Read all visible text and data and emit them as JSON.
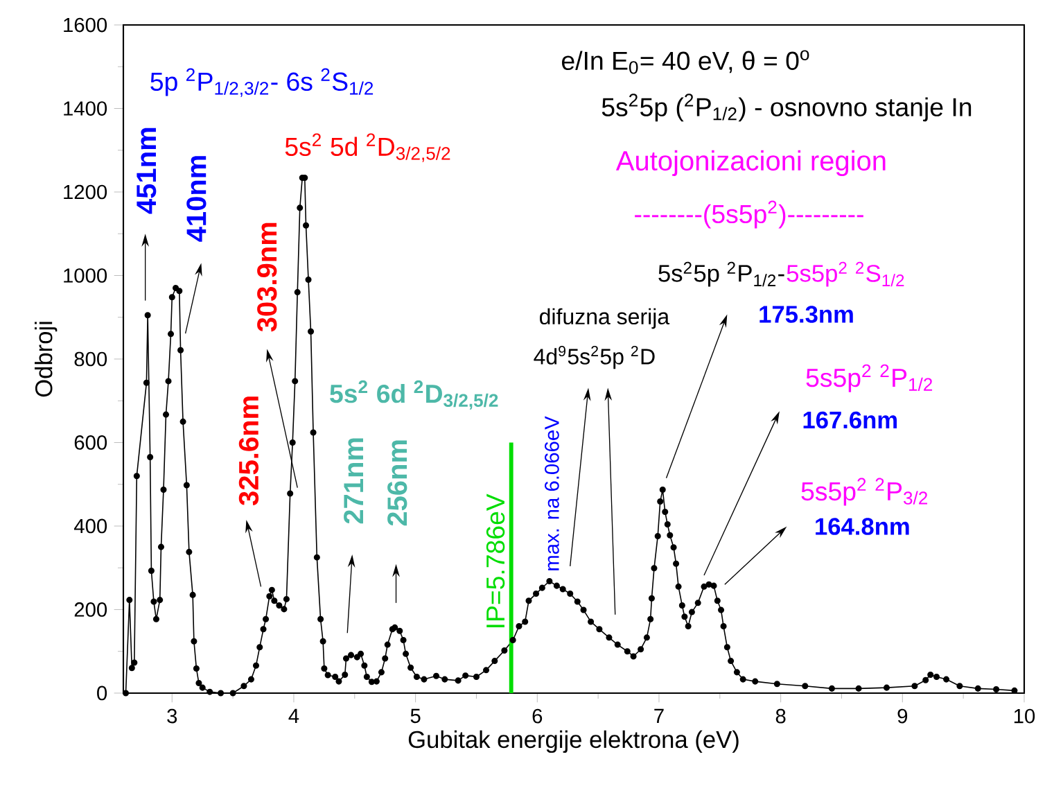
{
  "chart_data": {
    "type": "line",
    "xlabel": "Gubitak energije elektrona (eV)",
    "ylabel": "Odbroji",
    "x": [
      2.62,
      2.65,
      2.67,
      2.69,
      2.71,
      2.79,
      2.8,
      2.82,
      2.83,
      2.85,
      2.87,
      2.9,
      2.91,
      2.93,
      2.95,
      2.97,
      2.99,
      3.0,
      3.03,
      3.06,
      3.07,
      3.09,
      3.12,
      3.14,
      3.17,
      3.18,
      3.2,
      3.22,
      3.25,
      3.31,
      3.4,
      3.5,
      3.59,
      3.65,
      3.69,
      3.72,
      3.75,
      3.77,
      3.8,
      3.82,
      3.84,
      3.88,
      3.92,
      3.94,
      3.97,
      3.99,
      4.01,
      4.03,
      4.05,
      4.07,
      4.09,
      4.1,
      4.12,
      4.14,
      4.16,
      4.19,
      4.22,
      4.24,
      4.25,
      4.28,
      4.34,
      4.37,
      4.42,
      4.43,
      4.47,
      4.52,
      4.55,
      4.58,
      4.6,
      4.64,
      4.68,
      4.72,
      4.75,
      4.77,
      4.81,
      4.83,
      4.87,
      4.9,
      4.92,
      4.96,
      5.01,
      5.07,
      5.17,
      5.24,
      5.35,
      5.41,
      5.5,
      5.58,
      5.65,
      5.73,
      5.8,
      5.85,
      5.9,
      5.93,
      5.99,
      6.04,
      6.1,
      6.16,
      6.21,
      6.27,
      6.33,
      6.38,
      6.44,
      6.51,
      6.59,
      6.66,
      6.74,
      6.79,
      6.85,
      6.9,
      6.93,
      6.94,
      6.96,
      6.99,
      7.01,
      7.03,
      7.05,
      7.07,
      7.09,
      7.12,
      7.14,
      7.16,
      7.19,
      7.21,
      7.24,
      7.27,
      7.32,
      7.37,
      7.41,
      7.45,
      7.48,
      7.51,
      7.53,
      7.56,
      7.59,
      7.64,
      7.69,
      7.79,
      7.97,
      8.2,
      8.42,
      8.64,
      8.87,
      9.1,
      9.19,
      9.23,
      9.28,
      9.36,
      9.47,
      9.62,
      9.77,
      9.92
    ],
    "series": [
      {
        "color": "#000000",
        "values": [
          0,
          223,
          60,
          73,
          520,
          743,
          905,
          565,
          293,
          219,
          177,
          223,
          350,
          487,
          667,
          747,
          860,
          948,
          970,
          963,
          821,
          650,
          498,
          338,
          235,
          124,
          59,
          24,
          13,
          3,
          0,
          0,
          17,
          33,
          66,
          110,
          153,
          177,
          232,
          247,
          221,
          210,
          201,
          225,
          478,
          600,
          747,
          960,
          1162,
          1234,
          1234,
          1120,
          990,
          866,
          624,
          325,
          177,
          124,
          59,
          43,
          39,
          28,
          44,
          83,
          91,
          86,
          94,
          66,
          39,
          27,
          28,
          50,
          83,
          116,
          153,
          157,
          149,
          127,
          94,
          61,
          39,
          33,
          41,
          33,
          30,
          42,
          39,
          55,
          77,
          102,
          127,
          160,
          171,
          221,
          238,
          252,
          268,
          257,
          249,
          238,
          219,
          199,
          171,
          153,
          133,
          116,
          100,
          88,
          105,
          133,
          177,
          227,
          299,
          376,
          459,
          487,
          434,
          404,
          378,
          349,
          310,
          255,
          210,
          183,
          160,
          194,
          216,
          255,
          260,
          257,
          221,
          199,
          160,
          110,
          77,
          50,
          33,
          28,
          22,
          17,
          11,
          11,
          13,
          17,
          31,
          44,
          39,
          33,
          17,
          11,
          9,
          6
        ]
      }
    ],
    "xlim": [
      2.6,
      10
    ],
    "ylim": [
      0,
      1600
    ],
    "xticks": [
      3,
      4,
      5,
      6,
      7,
      8,
      9,
      10
    ],
    "yticks": [
      0,
      200,
      400,
      600,
      800,
      1000,
      1200,
      1400,
      1600
    ],
    "grid": false,
    "marker": "circle",
    "line_style": "solid",
    "ref_lines": [
      {
        "axis": "x",
        "value": 5.786,
        "label": "IP=5.786eV",
        "color": "#00dd00"
      }
    ],
    "annotations": [
      "e/In E$_{0}$= 40 eV, θ = 0$^{o}$",
      "5s$^{2}$5p ($^{2}$P$_{1/2}$) - osnovno stanje In",
      "Autojonizacioni region",
      "--------(5s5p$^{2}$)---------",
      "5p $^{2}$P$_{1/2,3/2}$- 6s $^{2}$S$_{1/2}$",
      "5s$^{2}$ 5d $^{2}$D$_{3/2,5/2}$",
      "5s$^{2}$ 6d $^{2}$D$_{3/2,5/2}$",
      "5s$^{2}$5p $^{2}$P$_{1/2}$-",
      "5s5p$^{2}$ $^{2}$S$_{1/2}$",
      "difuzna serija",
      "4d$^{9}$5s$^{2}$5p $^{2}$D",
      "5s5p$^{2}$ $^{2}$P$_{1/2}$",
      "5s5p$^{2}$ $^{2}$P$_{3/2}$",
      "451nm",
      "410nm",
      "325.6nm",
      "303.9nm",
      "271nm",
      "256nm",
      "max. na 6.066eV",
      "175.3nm",
      "167.6nm",
      "164.8nm"
    ]
  }
}
